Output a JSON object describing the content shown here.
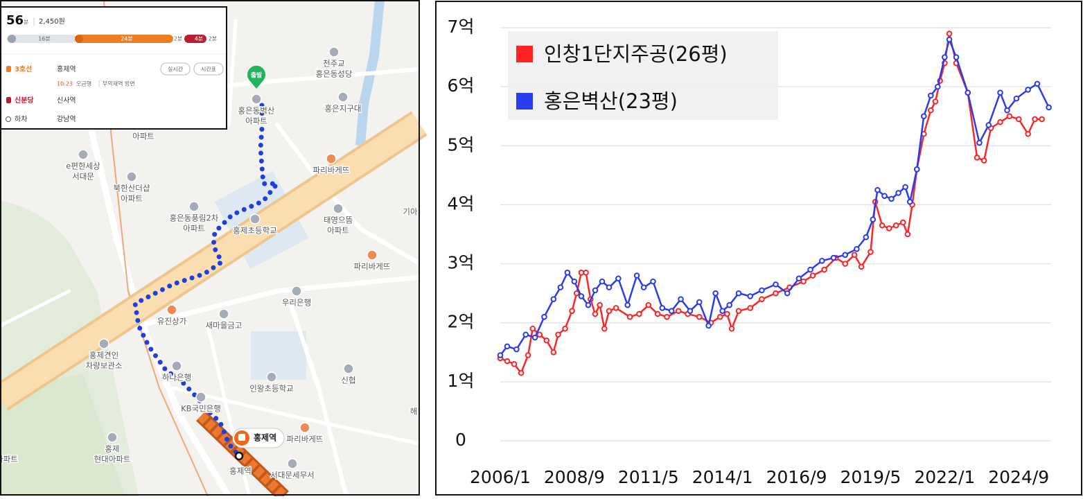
{
  "map_panel": {
    "summary": {
      "time": "56",
      "time_unit": "분",
      "fare": "2,450원"
    },
    "segments": [
      "16분",
      "24분",
      "2분",
      "4분",
      "2분"
    ],
    "steps": [
      {
        "line": "3호선",
        "station": "홍제역",
        "buttons": [
          "실시간",
          "시간표"
        ],
        "detail": [
          "10:23",
          "오금행",
          "무악재역 방면"
        ]
      },
      {
        "line": "신분당",
        "station": "신사역"
      },
      {
        "line": "하차",
        "station": "강남역"
      }
    ],
    "start_marker": "출발",
    "labels": [
      [
        "천주교",
        "홍은동성당"
      ],
      [
        "홍은동벽산",
        "아파트"
      ],
      [
        "홍은지구대"
      ],
      [
        "아파트"
      ],
      [
        "e편한세상",
        "서대문"
      ],
      [
        "파리바게뜨"
      ],
      [
        "북한산더샵",
        "아파트"
      ],
      [
        "홍은동풍림2차",
        "아파트"
      ],
      [
        "홍제초등학교"
      ],
      [
        "태영으뜸",
        "아파트"
      ],
      [
        "파리바게뜨"
      ],
      [
        "기아"
      ],
      [
        "우리은행"
      ],
      [
        "유진상가"
      ],
      [
        "새마을금고"
      ],
      [
        "홍제견인",
        "차량보관소"
      ],
      [
        "신협"
      ],
      [
        "하나은행"
      ],
      [
        "인왕초등학교"
      ],
      [
        "KB국민은행"
      ],
      [
        "해"
      ],
      [
        "파리바게뜨"
      ],
      [
        "홍제",
        "현대아파트"
      ],
      [
        "아파트"
      ],
      [
        "홍제역"
      ],
      [
        "서대문세무서"
      ]
    ],
    "station_bubble": "홍제역"
  },
  "chart_data": {
    "type": "line",
    "series": [
      {
        "name": "인창1단지주공(26평)",
        "color": "#ff2424",
        "x": [
          "2006/1",
          "2006/4",
          "2006/7",
          "2006/10",
          "2007/1",
          "2007/3",
          "2007/6",
          "2007/9",
          "2007/12",
          "2008/2",
          "2008/5",
          "2008/8",
          "2008/10",
          "2008/12",
          "2009/2",
          "2009/4",
          "2009/6",
          "2009/8",
          "2009/10",
          "2009/12",
          "2010/3",
          "2010/9",
          "2011/1",
          "2011/5",
          "2011/9",
          "2012/1",
          "2012/6",
          "2012/10",
          "2013/3",
          "2013/8",
          "2013/12",
          "2014/3",
          "2014/5",
          "2014/8",
          "2015/1",
          "2015/6",
          "2015/12",
          "2016/6",
          "2016/12",
          "2017/4",
          "2017/9",
          "2018/2",
          "2018/6",
          "2018/10",
          "2019/1",
          "2019/5",
          "2019/7",
          "2019/10",
          "2020/1",
          "2020/4",
          "2020/7",
          "2020/9",
          "2020/11",
          "2021/1",
          "2021/4",
          "2021/7",
          "2021/9",
          "2021/11",
          "2022/1",
          "2022/3",
          "2022/6",
          "2022/11",
          "2023/3",
          "2023/6",
          "2023/9",
          "2024/1",
          "2024/5",
          "2024/9",
          "2025/1",
          "2025/4",
          "2025/7"
        ],
        "values": [
          1.4,
          1.35,
          1.3,
          1.15,
          1.45,
          1.9,
          1.8,
          1.7,
          1.5,
          1.8,
          1.9,
          2.2,
          2.5,
          2.85,
          2.85,
          2.4,
          2.15,
          2.3,
          1.9,
          2.2,
          2.25,
          2.1,
          2.15,
          2.3,
          2.15,
          2.1,
          2.2,
          2.15,
          2.1,
          2.0,
          2.1,
          2.15,
          1.9,
          2.2,
          2.25,
          2.4,
          2.5,
          2.6,
          2.7,
          2.8,
          2.9,
          3.1,
          3.0,
          3.15,
          2.95,
          3.2,
          4.05,
          3.65,
          3.6,
          3.65,
          3.7,
          3.5,
          4.0,
          4.6,
          5.2,
          5.6,
          5.75,
          6.1,
          6.4,
          6.9,
          6.4,
          5.9,
          4.8,
          4.75,
          5.3,
          5.4,
          5.5,
          5.45,
          5.2,
          5.45,
          5.45
        ]
      },
      {
        "name": "홍은벽산(23평)",
        "color": "#2a3cf0",
        "x": [
          "2006/1",
          "2006/4",
          "2006/8",
          "2006/12",
          "2007/4",
          "2007/8",
          "2007/12",
          "2008/3",
          "2008/6",
          "2008/9",
          "2008/12",
          "2009/3",
          "2009/6",
          "2009/9",
          "2009/12",
          "2010/4",
          "2010/8",
          "2010/12",
          "2011/3",
          "2011/7",
          "2011/11",
          "2012/3",
          "2012/7",
          "2012/11",
          "2013/3",
          "2013/7",
          "2013/10",
          "2014/1",
          "2014/4",
          "2014/8",
          "2015/1",
          "2015/6",
          "2015/12",
          "2016/5",
          "2016/10",
          "2017/3",
          "2017/8",
          "2018/1",
          "2018/6",
          "2018/11",
          "2019/3",
          "2019/6",
          "2019/8",
          "2019/11",
          "2020/2",
          "2020/5",
          "2020/8",
          "2020/10",
          "2021/1",
          "2021/4",
          "2021/7",
          "2021/10",
          "2022/1",
          "2022/3",
          "2022/6",
          "2022/11",
          "2023/4",
          "2023/8",
          "2024/1",
          "2024/4",
          "2024/8",
          "2025/1",
          "2025/5",
          "2025/10"
        ],
        "values": [
          1.45,
          1.6,
          1.55,
          1.8,
          1.75,
          2.1,
          2.4,
          2.6,
          2.85,
          2.7,
          2.45,
          2.3,
          2.55,
          2.7,
          2.6,
          2.75,
          2.3,
          2.8,
          2.6,
          2.7,
          2.25,
          2.2,
          2.4,
          2.2,
          2.35,
          1.95,
          2.5,
          2.2,
          2.3,
          2.5,
          2.45,
          2.55,
          2.65,
          2.5,
          2.75,
          2.9,
          3.05,
          3.1,
          3.15,
          3.25,
          3.45,
          3.75,
          4.25,
          4.15,
          4.1,
          4.2,
          4.3,
          4.05,
          4.6,
          5.5,
          5.85,
          6.0,
          6.5,
          6.8,
          6.5,
          5.9,
          5.05,
          5.35,
          5.9,
          5.6,
          5.8,
          5.95,
          6.05,
          5.65
        ]
      }
    ],
    "xlim": [
      "2006/1",
      "2025/11"
    ],
    "xticks": [
      "2006/1",
      "2008/9",
      "2011/5",
      "2014/1",
      "2016/9",
      "2019/5",
      "2022/1",
      "2024/9"
    ],
    "ylim": [
      0,
      7
    ],
    "yticks": [
      0,
      {
        "value": 1,
        "label": "1억"
      },
      {
        "value": 2,
        "label": "2억"
      },
      {
        "value": 3,
        "label": "3억"
      },
      {
        "value": 4,
        "label": "4억"
      },
      {
        "value": 5,
        "label": "5억"
      },
      {
        "value": 6,
        "label": "6억"
      },
      {
        "value": 7,
        "label": "7억"
      }
    ],
    "grid": true,
    "legend": "upper left",
    "marker": "circle"
  }
}
